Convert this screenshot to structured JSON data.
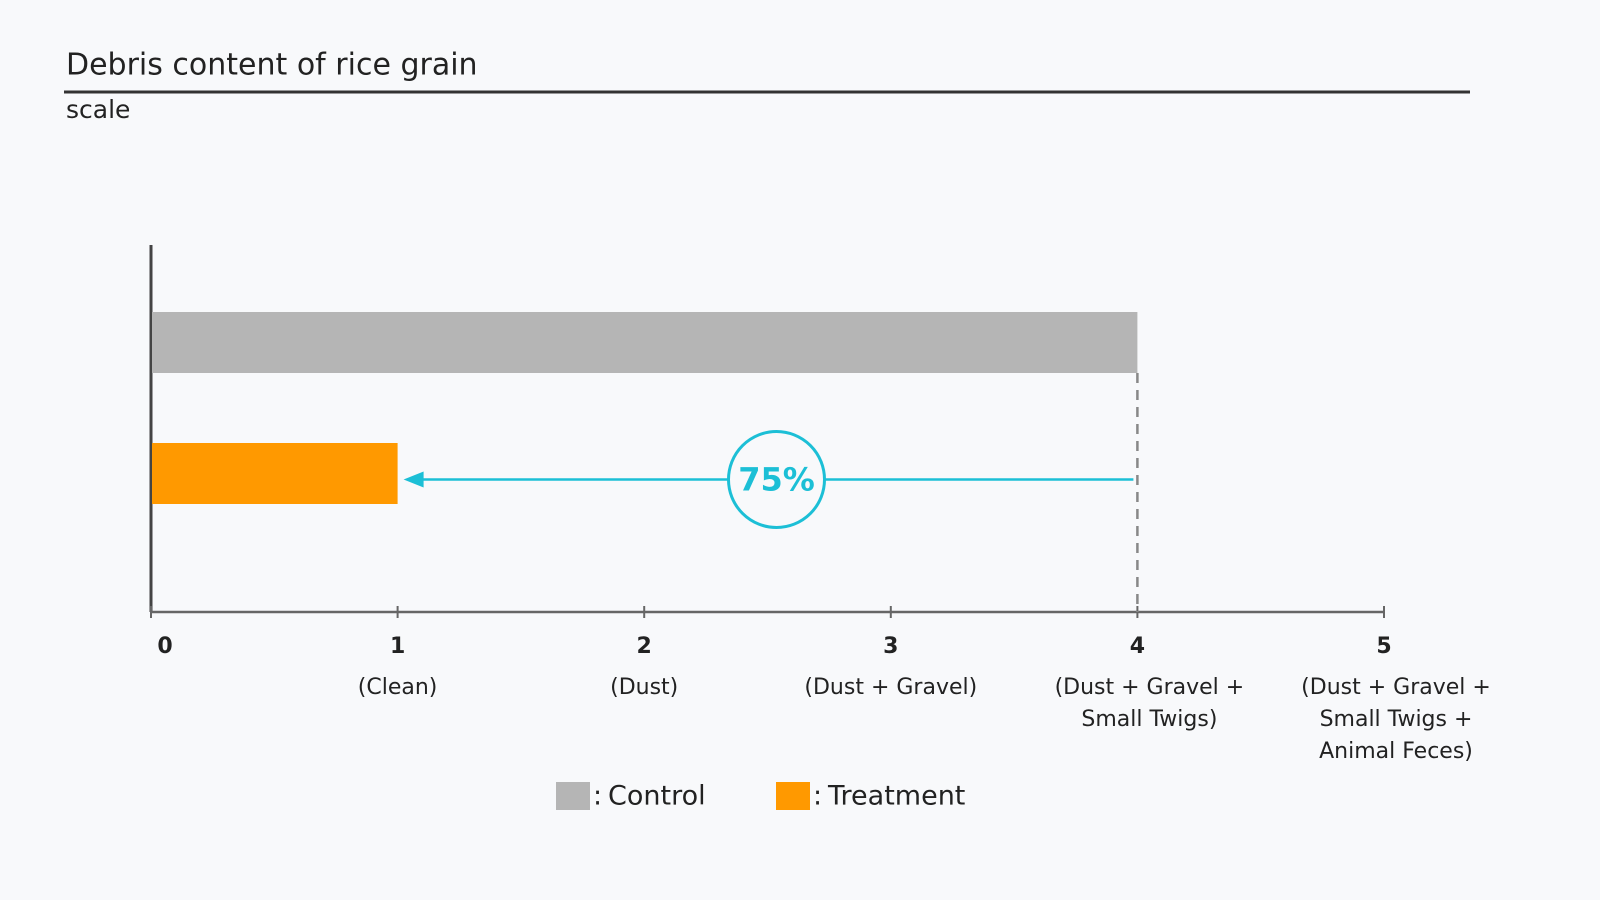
{
  "chart_data": {
    "type": "bar",
    "orientation": "horizontal",
    "title": "Debris content of rice grain",
    "subtitle": "scale",
    "series": [
      {
        "name": "Control",
        "color": "#b5b5b5",
        "values": [
          4
        ]
      },
      {
        "name": "Treatment",
        "color": "#ff9900",
        "values": [
          1
        ]
      }
    ],
    "legend_prefix": ":",
    "xlim": [
      0,
      5
    ],
    "xticks": [
      0,
      1,
      2,
      3,
      4,
      5
    ],
    "xtick_descriptions": [
      null,
      [
        "(Clean)"
      ],
      [
        "(Dust)"
      ],
      [
        "(Dust  + Gravel)"
      ],
      [
        "(Dust  + Gravel +",
        "Small Twigs)"
      ],
      [
        "(Dust  + Gravel +",
        "Small Twigs +",
        "Animal Feces)"
      ]
    ],
    "annotation": "75%",
    "annotation_color": "#1cbfd6"
  }
}
